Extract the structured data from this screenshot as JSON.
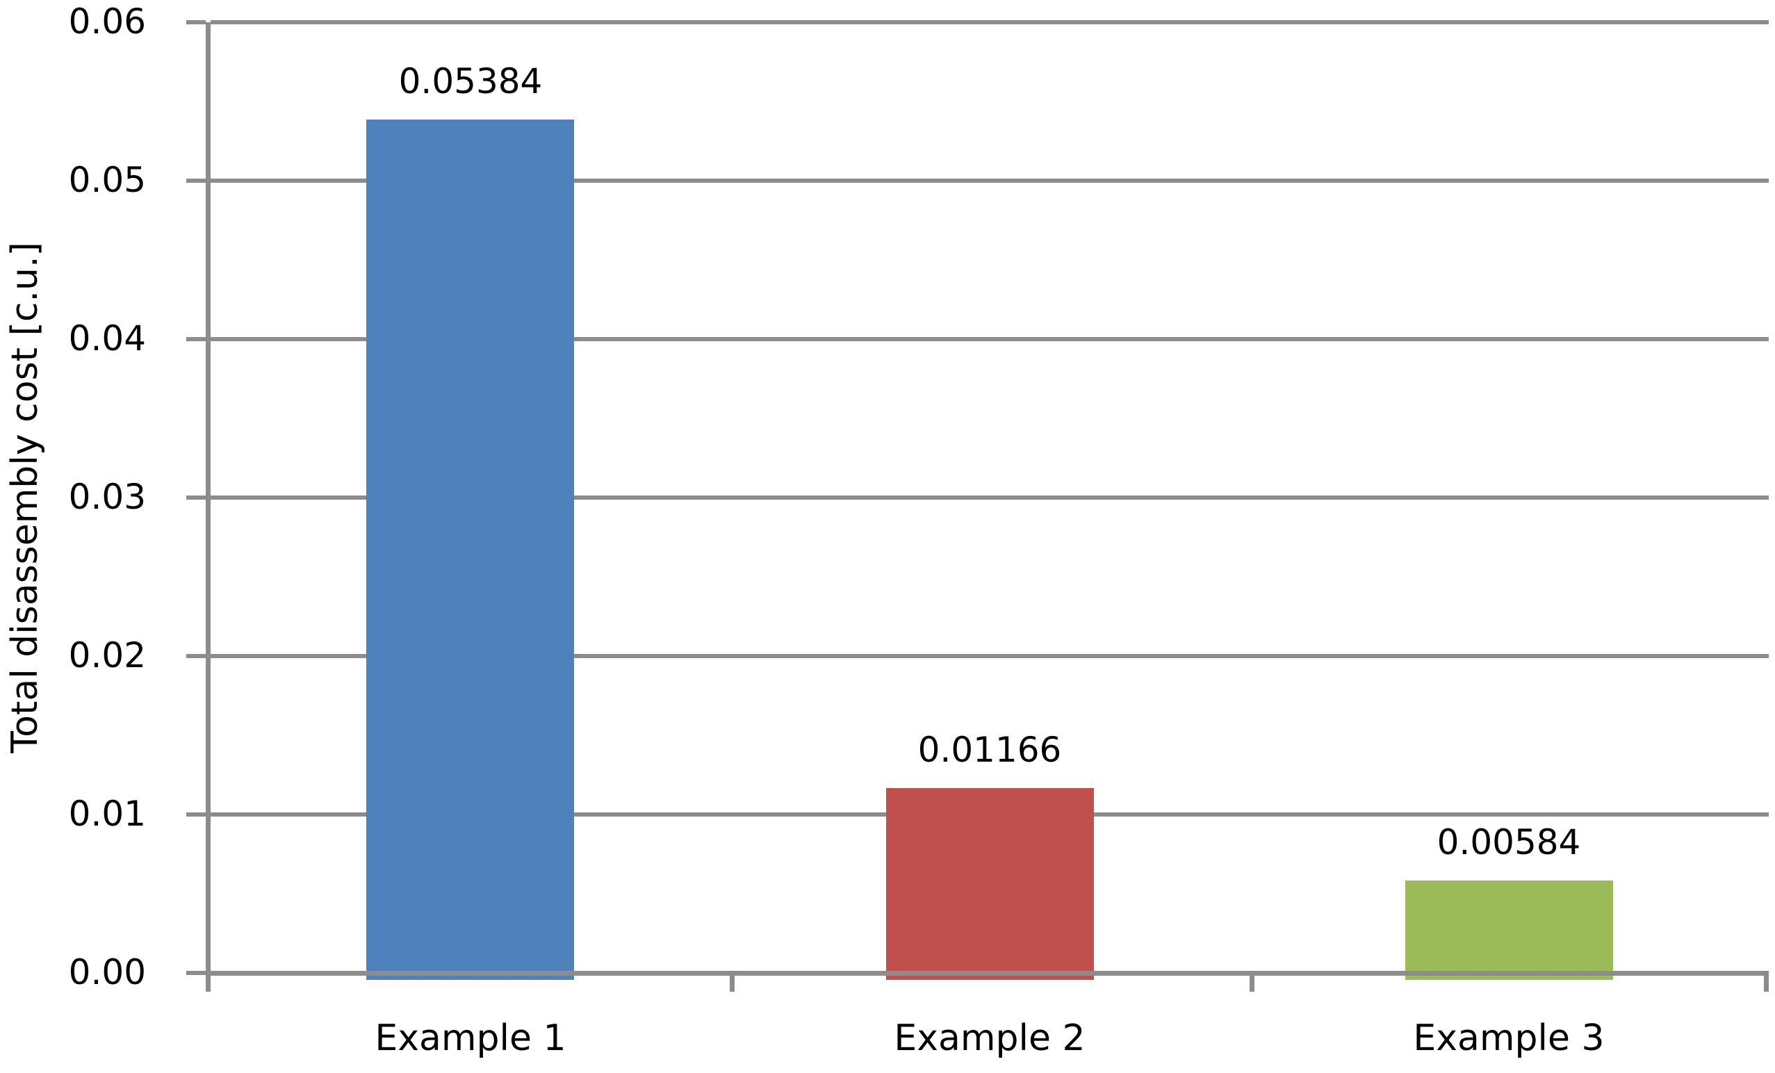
{
  "chart_data": {
    "type": "bar",
    "title": "",
    "xlabel": "",
    "ylabel": "Total disassembly cost [c.u.]",
    "categories": [
      "Example 1",
      "Example 2",
      "Example 3"
    ],
    "values": [
      0.05384,
      0.01166,
      0.00584
    ],
    "value_labels": [
      "0.05384",
      "0.01166",
      "0.00584"
    ],
    "bar_colors": [
      "#4F81BD",
      "#C0504D",
      "#9BBB59"
    ],
    "ylim": [
      0,
      0.06
    ],
    "ytick_step": 0.01,
    "ytick_labels": [
      "0.00",
      "0.01",
      "0.02",
      "0.03",
      "0.04",
      "0.05",
      "0.06"
    ],
    "grid": true,
    "legend": false,
    "axis_color": "#8C8C8C",
    "gridline_color": "#8C8C8C",
    "text_color": "#000000",
    "background_color": "#FFFFFF"
  }
}
